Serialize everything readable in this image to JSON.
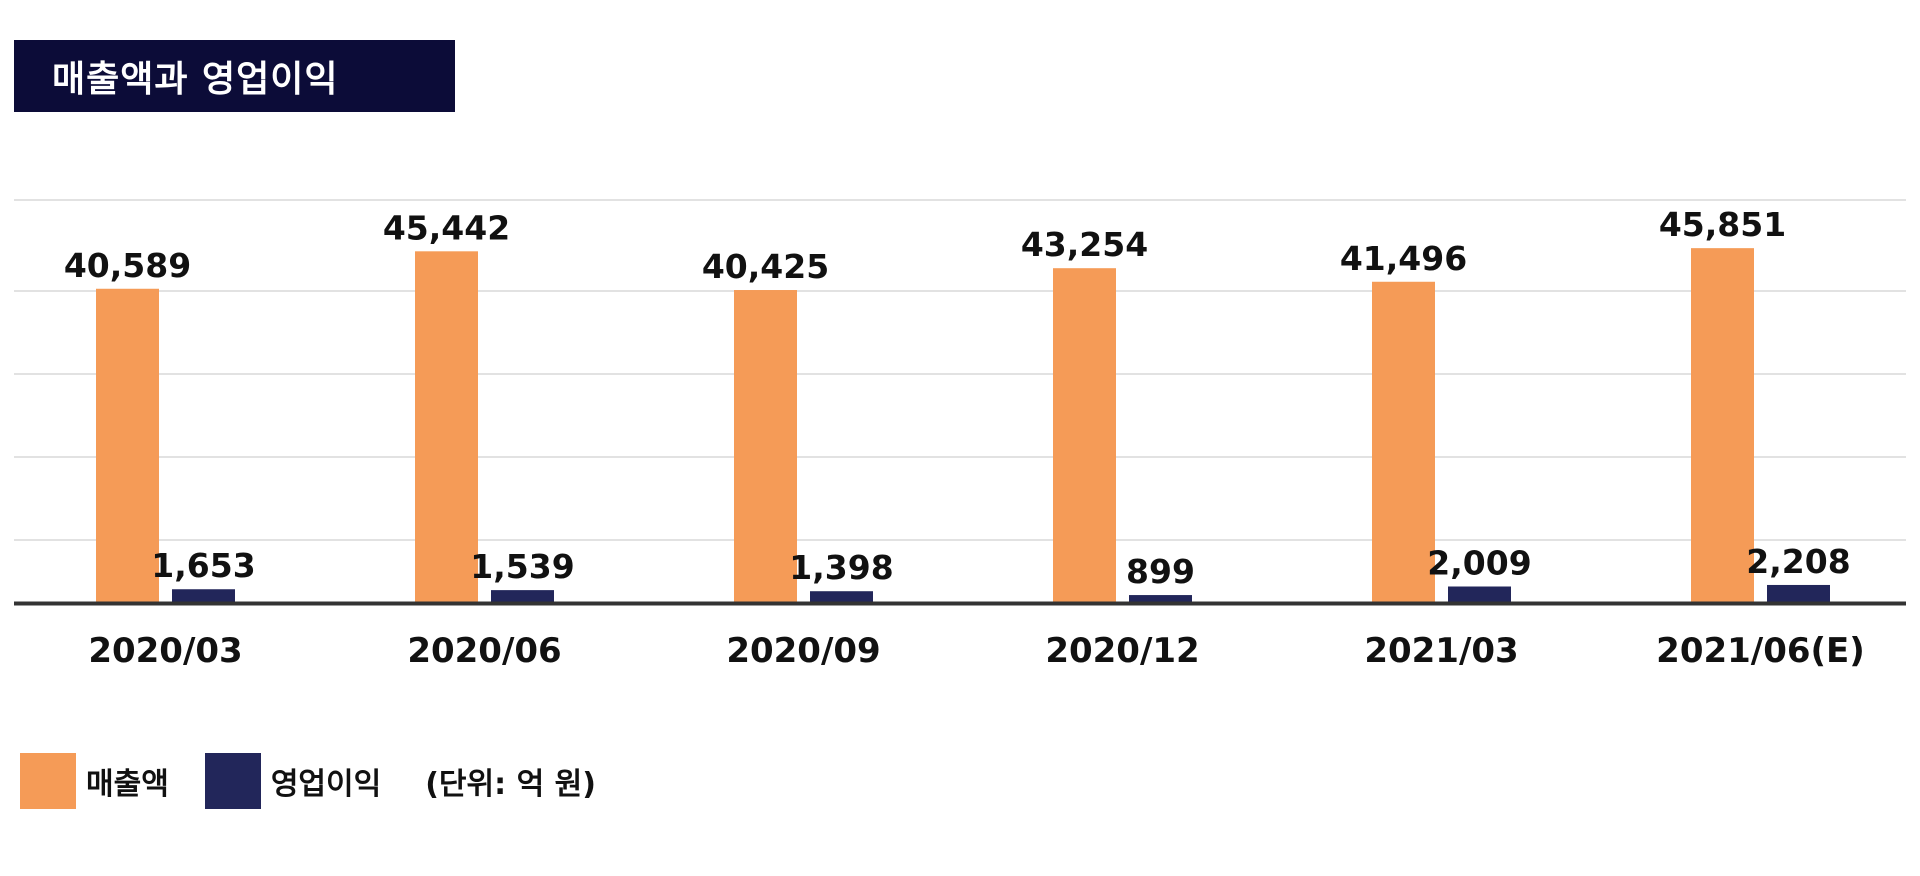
{
  "title": "매출액과 영업이익",
  "legend": {
    "series1": "매출액",
    "series2": "영업이익",
    "unit": "(단위: 억 원)"
  },
  "colors": {
    "title_bg": "#0c0c38",
    "revenue": "#f59b57",
    "operating_profit": "#22265a",
    "grid": "#d9d9d9",
    "axis": "#333333"
  },
  "chart_data": {
    "type": "bar",
    "title": "매출액과 영업이익",
    "categories": [
      "2020/03",
      "2020/06",
      "2020/09",
      "2020/12",
      "2021/03",
      "2021/06(E)"
    ],
    "series": [
      {
        "name": "매출액",
        "values": [
          40589,
          45442,
          40425,
          43254,
          41496,
          45851
        ],
        "labels": [
          "40,589",
          "45,442",
          "40,425",
          "43,254",
          "41,496",
          "45,851"
        ]
      },
      {
        "name": "영업이익",
        "values": [
          1653,
          1539,
          1398,
          899,
          2009,
          2208
        ],
        "labels": [
          "1,653",
          "1,539",
          "1,398",
          "899",
          "2,009",
          "2,208"
        ]
      }
    ],
    "unit": "억 원",
    "grid": true,
    "legend_position": "bottom-left"
  }
}
